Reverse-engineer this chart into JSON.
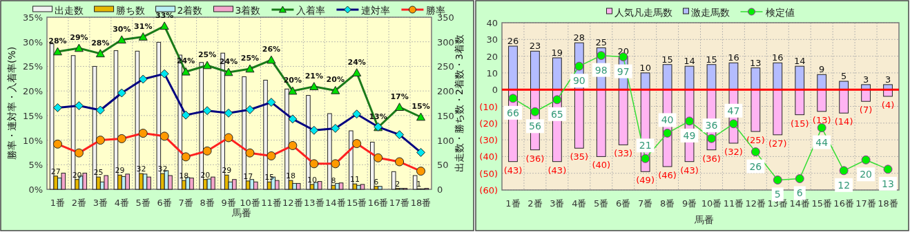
{
  "chart_data": [
    {
      "type": "bar",
      "xlabel": "馬番",
      "ylabel": "勝率・連対率・入着率(%)",
      "y2label": "出走数・勝ち数・2着数・3着数",
      "categories": [
        "1番",
        "2番",
        "3番",
        "4番",
        "5番",
        "6番",
        "7番",
        "8番",
        "9番",
        "10番",
        "11番",
        "12番",
        "13番",
        "14番",
        "15番",
        "16番",
        "17番",
        "18番"
      ],
      "ylim": [
        0,
        35
      ],
      "yticks": [
        {
          "value": 0,
          "label": "0%"
        },
        {
          "value": 5,
          "label": "5%"
        },
        {
          "value": 10,
          "label": "10%"
        },
        {
          "value": 15,
          "label": "15%"
        },
        {
          "value": 20,
          "label": "20%"
        },
        {
          "value": 25,
          "label": "25%"
        },
        {
          "value": 30,
          "label": "30%"
        },
        {
          "value": 35,
          "label": "35%"
        }
      ],
      "y2lim": [
        0,
        350
      ],
      "y2ticks": [
        0,
        50,
        100,
        150,
        200,
        250,
        300,
        350
      ],
      "grid": true,
      "legend": "top",
      "series": [
        {
          "name": "出走数",
          "type": "bar",
          "axis": "y2",
          "color": "#f2f2f2",
          "values": [
            296,
            272,
            250,
            282,
            281,
            299,
            273,
            258,
            277,
            229,
            222,
            204,
            191,
            154,
            119,
            96,
            36,
            28
          ]
        },
        {
          "name": "勝ち数",
          "type": "bar",
          "axis": "y2",
          "color": "#e6b800",
          "values": [
            27,
            20,
            25,
            29,
            32,
            32,
            18,
            20,
            29,
            17,
            15,
            18,
            10,
            8,
            11,
            6,
            2,
            1
          ],
          "value_labels": [
            "27",
            "20",
            "25",
            "29",
            "32",
            "32",
            "18",
            "20",
            "29",
            "17",
            "15",
            "18",
            "10",
            "8",
            "11",
            "6",
            "2",
            "1"
          ]
        },
        {
          "name": "2着数",
          "type": "bar",
          "axis": "y2",
          "color": "#b8eef4",
          "values": [
            23,
            27,
            15,
            26,
            31,
            38,
            24,
            21,
            15,
            20,
            25,
            12,
            14,
            12,
            8,
            6,
            2,
            1
          ]
        },
        {
          "name": "3着数",
          "type": "bar",
          "axis": "y2",
          "color": "#f4a6cc",
          "values": [
            33,
            33,
            28,
            31,
            25,
            28,
            23,
            25,
            20,
            15,
            18,
            12,
            16,
            13,
            10,
            0,
            2,
            2
          ]
        },
        {
          "name": "入着率",
          "type": "line",
          "axis": "y",
          "marker": "triangle",
          "color": "#1a7a1a",
          "colors": [
            "#00dd00",
            "#00dd00",
            "#00dd00",
            "#00dd00",
            "#00dd00",
            "#00dd00",
            "#00dd00",
            "#00dd00",
            "#00dd00",
            "#00dd00",
            "#00dd00",
            "#00dd00",
            "#00dd00",
            "#00dd00",
            "#00dd00",
            "#00dd00",
            "#00dd00",
            "#00dd00"
          ],
          "values": [
            28.0,
            28.7,
            27.6,
            30.4,
            31.0,
            33.2,
            23.9,
            25.2,
            23.8,
            24.5,
            26.3,
            20.0,
            20.9,
            20.1,
            23.7,
            12.6,
            16.7,
            14.7
          ],
          "value_labels": [
            "28%",
            "29%",
            "28%",
            "30%",
            "31%",
            "33%",
            "24%",
            "25%",
            "24%",
            "25%",
            "26%",
            "20%",
            "21%",
            "20%",
            "24%",
            "13%",
            "17%",
            "15%"
          ]
        },
        {
          "name": "連対率",
          "type": "line",
          "axis": "y",
          "marker": "diamond",
          "color": "#000080",
          "colors": [
            "#00e5ee",
            "#00e5ee",
            "#00e5ee",
            "#00e5ee",
            "#00e5ee",
            "#00e5ee",
            "#00e5ee",
            "#00e5ee",
            "#00e5ee",
            "#00e5ee",
            "#00e5ee",
            "#00e5ee",
            "#00e5ee",
            "#00e5ee",
            "#00e5ee",
            "#00e5ee",
            "#00e5ee",
            "#00e5ee"
          ],
          "values": [
            16.6,
            17.0,
            16.1,
            19.6,
            22.4,
            23.5,
            15.1,
            16.0,
            15.5,
            16.2,
            17.7,
            14.3,
            12.0,
            12.4,
            15.3,
            12.7,
            11.1,
            7.5
          ]
        },
        {
          "name": "勝率",
          "type": "line",
          "axis": "y",
          "marker": "circle",
          "color": "#ff2020",
          "colors": [
            "#ff9900",
            "#ff9900",
            "#ff9900",
            "#ff9900",
            "#ff9900",
            "#ff9900",
            "#ff9900",
            "#ff9900",
            "#ff9900",
            "#ff9900",
            "#ff9900",
            "#ff9900",
            "#ff9900",
            "#ff9900",
            "#ff9900",
            "#ff9900",
            "#ff9900",
            "#ff9900"
          ],
          "values": [
            9.2,
            7.4,
            10.0,
            10.3,
            11.4,
            10.8,
            6.6,
            7.8,
            10.5,
            7.4,
            6.8,
            8.9,
            5.2,
            5.2,
            9.3,
            6.4,
            5.6,
            3.7
          ]
        }
      ]
    },
    {
      "type": "bar",
      "stacked": true,
      "xlabel": "馬番",
      "categories": [
        "1番",
        "2番",
        "3番",
        "4番",
        "5番",
        "6番",
        "7番",
        "8番",
        "9番",
        "10番",
        "11番",
        "12番",
        "13番",
        "14番",
        "15番",
        "16番",
        "17番",
        "18番"
      ],
      "ylim": [
        -60,
        40
      ],
      "yticks": [
        40,
        30,
        20,
        10,
        0,
        {
          "value": -10,
          "label": "(10)"
        },
        {
          "value": -20,
          "label": "(20)"
        },
        {
          "value": -30,
          "label": "(30)"
        },
        {
          "value": -40,
          "label": "(40)"
        },
        {
          "value": -50,
          "label": "(50)"
        },
        {
          "value": -60,
          "label": "(60)"
        }
      ],
      "y2lim": [
        -2.5,
        122.5
      ],
      "grid": true,
      "legend": "top",
      "ref_lines": [
        {
          "axis": "y",
          "value": 0,
          "color": "#ff0000"
        }
      ],
      "series": [
        {
          "name": "人気凡走馬数",
          "color": "#ffb4f2",
          "values": [
            -43,
            -36,
            -43,
            -35,
            -40,
            -33,
            -49,
            -46,
            -43,
            -36,
            -32,
            -25,
            -27,
            -15,
            -13,
            -14,
            -7,
            -4
          ],
          "value_labels": [
            "(43)",
            "(36)",
            "(43)",
            "(35)",
            "(40)",
            "(33)",
            "(49)",
            "(46)",
            "(43)",
            "(36)",
            "(32)",
            "(25)",
            "(27)",
            "(15)",
            "(13)",
            "(14)",
            "(7)",
            "(4)"
          ]
        },
        {
          "name": "激走馬数",
          "color": "#b4bcff",
          "values": [
            26,
            23,
            19,
            28,
            25,
            20,
            10,
            15,
            14,
            15,
            16,
            13,
            16,
            14,
            9,
            5,
            3,
            3
          ],
          "value_labels": [
            "26",
            "23",
            "19",
            "28",
            "25",
            "20",
            "10",
            "15",
            "14",
            "15",
            "16",
            "13",
            "16",
            "14",
            "9",
            "5",
            "3",
            "3"
          ]
        },
        {
          "name": "検定値",
          "type": "line",
          "axis": "y2",
          "marker": "circle",
          "color": "#33dd33",
          "values": [
            66,
            56,
            65,
            90,
            98,
            97,
            21,
            40,
            49,
            36,
            47,
            26,
            5,
            6,
            44,
            12,
            20,
            13
          ],
          "value_labels": [
            "66",
            "56",
            "65",
            "90",
            "98",
            "97",
            "21",
            "40",
            "49",
            "36",
            "47",
            "26",
            "5",
            "6",
            "44",
            "12",
            "20",
            "13"
          ]
        }
      ]
    }
  ]
}
